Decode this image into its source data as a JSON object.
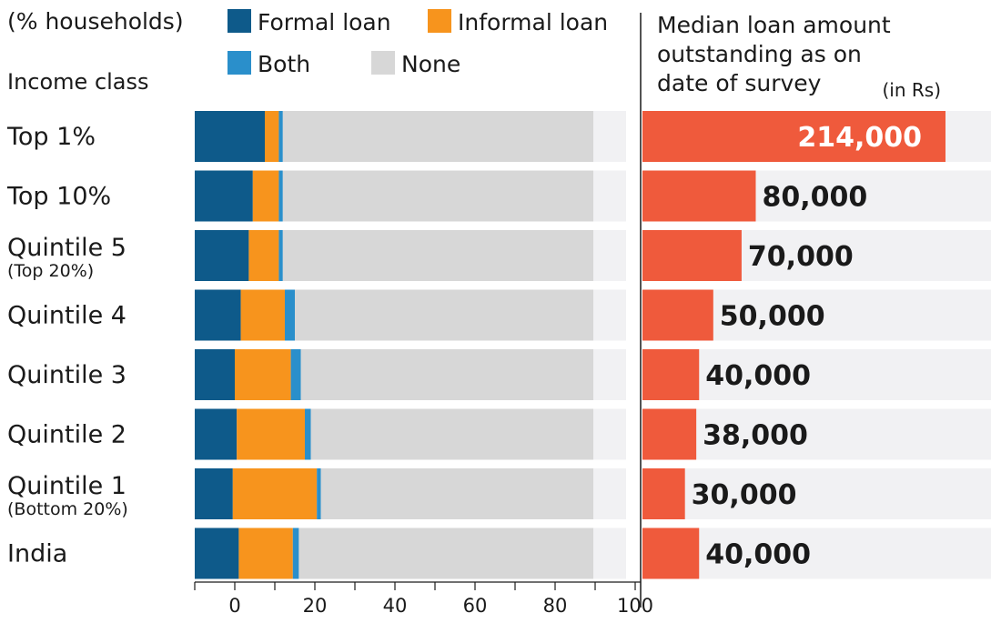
{
  "chart_data": [
    {
      "type": "bar",
      "orientation": "horizontal",
      "stacked": true,
      "unit_label": "(% households)",
      "row_header": "Income class",
      "categories": [
        {
          "label": "Top 1%",
          "sublabel": ""
        },
        {
          "label": "Top 10%",
          "sublabel": ""
        },
        {
          "label": "Quintile 5",
          "sublabel": "(Top 20%)"
        },
        {
          "label": "Quintile 4",
          "sublabel": ""
        },
        {
          "label": "Quintile 3",
          "sublabel": ""
        },
        {
          "label": "Quintile 2",
          "sublabel": ""
        },
        {
          "label": "Quintile 1",
          "sublabel": "(Bottom 20%)"
        },
        {
          "label": "India",
          "sublabel": ""
        }
      ],
      "series": [
        {
          "name": "Formal loan",
          "color": "#0e5a8a",
          "values": [
            7.5,
            4.5,
            3.5,
            1.5,
            0,
            0.5,
            -0.5,
            1
          ]
        },
        {
          "name": "Informal loan",
          "color": "#f7941d",
          "values": [
            3.5,
            6.5,
            7.5,
            11,
            14,
            17,
            21,
            13.5
          ]
        },
        {
          "name": "Both",
          "color": "#2a8fcb",
          "values": [
            1,
            1,
            1,
            2.5,
            2.5,
            1.5,
            1,
            1.5
          ]
        },
        {
          "name": "None",
          "color": "#d7d7d7",
          "values": [
            77.5,
            78,
            78,
            75,
            73.5,
            71,
            68.5,
            74
          ]
        }
      ],
      "x_ticks": [
        0,
        20,
        40,
        60,
        80,
        100
      ],
      "xlim": [
        -10,
        100
      ],
      "grid": false,
      "legend_position": "top"
    },
    {
      "type": "bar",
      "orientation": "horizontal",
      "title": [
        "Median loan amount",
        "outstanding as on",
        "date of survey"
      ],
      "unit_label": "(in Rs)",
      "bar_color": "#ef5a3c",
      "categories": [
        "Top 1%",
        "Top 10%",
        "Quintile 5",
        "Quintile 4",
        "Quintile 3",
        "Quintile 2",
        "Quintile 1",
        "India"
      ],
      "values": [
        214000,
        80000,
        70000,
        50000,
        40000,
        38000,
        30000,
        40000
      ],
      "value_labels": [
        "214,000",
        "80,000",
        "70,000",
        "50,000",
        "40,000",
        "38,000",
        "30,000",
        "40,000"
      ]
    }
  ]
}
